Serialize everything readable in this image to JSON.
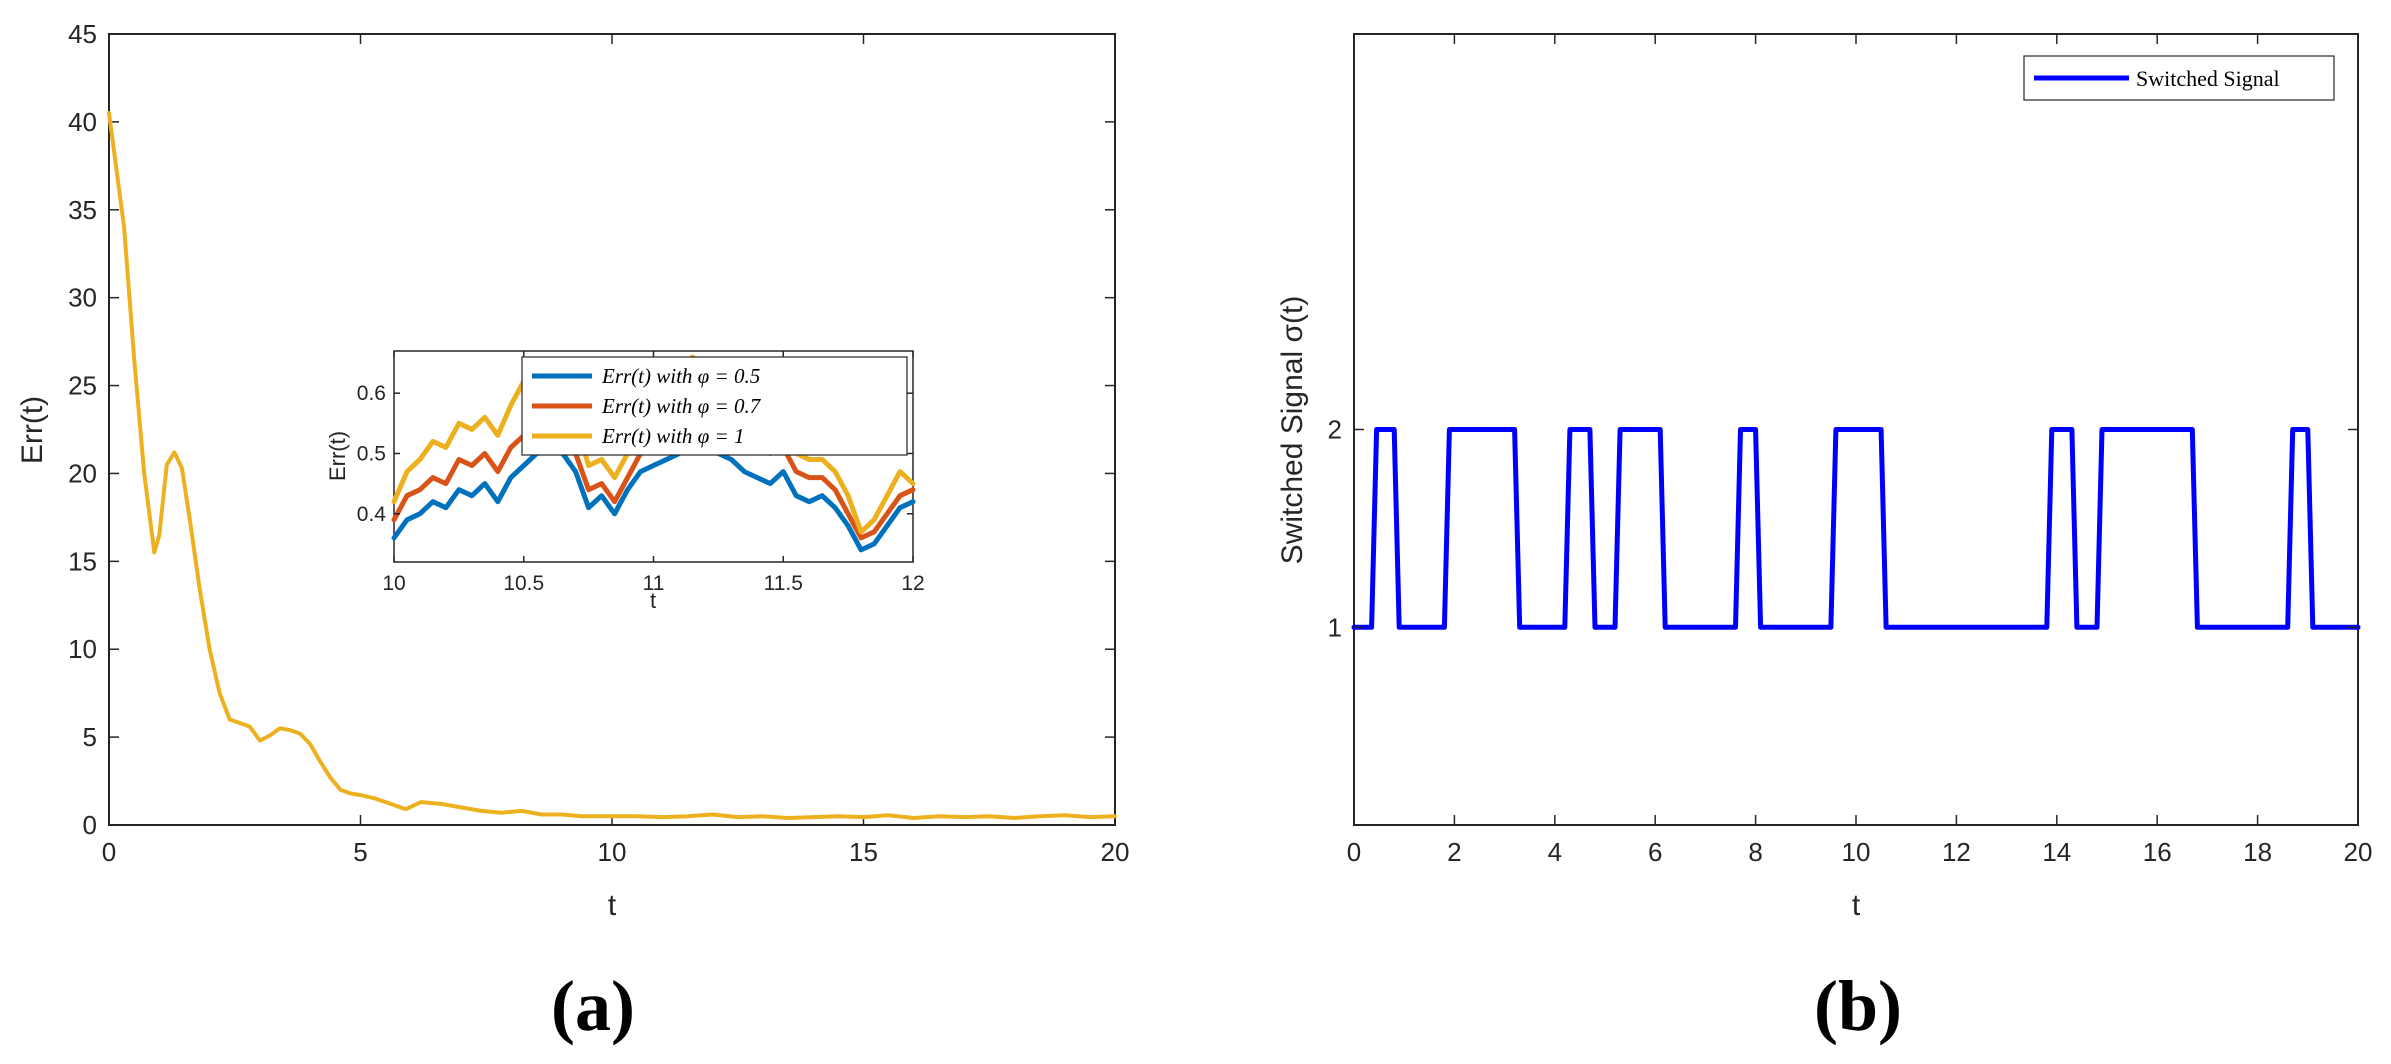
{
  "panel_labels": [
    "(a)",
    "(b)"
  ],
  "chart_data": [
    {
      "type": "line",
      "xlabel": "t",
      "ylabel": "Err(t)",
      "xlim": [
        0,
        20
      ],
      "ylim": [
        0,
        45
      ],
      "xticks": [
        0,
        5,
        10,
        15,
        20
      ],
      "yticks": [
        0,
        5,
        10,
        15,
        20,
        25,
        30,
        35,
        40,
        45
      ],
      "grid": false,
      "series": [
        {
          "name": "Err(t)   with   φ = 1",
          "color": "#EDB120",
          "x": [
            0,
            0.3,
            0.5,
            0.7,
            0.9,
            1.0,
            1.15,
            1.3,
            1.45,
            1.6,
            1.8,
            2.0,
            2.2,
            2.4,
            2.6,
            2.8,
            3.0,
            3.2,
            3.4,
            3.6,
            3.8,
            4.0,
            4.2,
            4.4,
            4.6,
            4.8,
            5.0,
            5.3,
            5.6,
            5.9,
            6.2,
            6.6,
            7.0,
            7.4,
            7.8,
            8.2,
            8.6,
            9.0,
            9.4,
            9.8,
            10.5,
            11.0,
            11.5,
            12.0,
            12.5,
            13.0,
            13.5,
            14.0,
            14.5,
            15.0,
            15.5,
            16.0,
            16.5,
            17.0,
            17.5,
            18.0,
            18.5,
            19.0,
            19.5,
            20.0
          ],
          "y": [
            40.5,
            34,
            26.5,
            20,
            15.5,
            16.5,
            20.5,
            21.2,
            20.3,
            17.5,
            13.5,
            10,
            7.5,
            6,
            5.8,
            5.6,
            4.8,
            5.1,
            5.5,
            5.4,
            5.2,
            4.6,
            3.6,
            2.7,
            2.0,
            1.8,
            1.7,
            1.5,
            1.2,
            0.9,
            1.3,
            1.2,
            1.0,
            0.8,
            0.7,
            0.8,
            0.6,
            0.6,
            0.5,
            0.5,
            0.5,
            0.45,
            0.5,
            0.6,
            0.45,
            0.5,
            0.4,
            0.45,
            0.5,
            0.45,
            0.55,
            0.4,
            0.5,
            0.45,
            0.5,
            0.4,
            0.5,
            0.55,
            0.45,
            0.5
          ]
        }
      ],
      "inset": {
        "xlabel": "t",
        "ylabel": "Err(t)",
        "xlim": [
          10,
          12
        ],
        "ylim": [
          0.32,
          0.67
        ],
        "xticks": [
          10,
          10.5,
          11,
          11.5,
          12
        ],
        "yticks": [
          0.4,
          0.5,
          0.6
        ],
        "legend_position": "top-right",
        "series": [
          {
            "name": "Err(t)   with   φ = 0.5",
            "color": "#0072BD",
            "x": [
              10.0,
              10.05,
              10.1,
              10.15,
              10.2,
              10.25,
              10.3,
              10.35,
              10.4,
              10.45,
              10.5,
              10.55,
              10.6,
              10.65,
              10.7,
              10.75,
              10.8,
              10.85,
              10.9,
              10.95,
              11.0,
              11.05,
              11.1,
              11.15,
              11.2,
              11.25,
              11.3,
              11.35,
              11.4,
              11.45,
              11.5,
              11.55,
              11.6,
              11.65,
              11.7,
              11.75,
              11.8,
              11.85,
              11.9,
              11.95,
              12.0
            ],
            "y": [
              0.36,
              0.39,
              0.4,
              0.42,
              0.41,
              0.44,
              0.43,
              0.45,
              0.42,
              0.46,
              0.48,
              0.5,
              0.52,
              0.5,
              0.47,
              0.41,
              0.43,
              0.4,
              0.44,
              0.47,
              0.48,
              0.49,
              0.5,
              0.52,
              0.51,
              0.5,
              0.49,
              0.47,
              0.46,
              0.45,
              0.47,
              0.43,
              0.42,
              0.43,
              0.41,
              0.38,
              0.34,
              0.35,
              0.38,
              0.41,
              0.42
            ]
          },
          {
            "name": "Err(t)   with   φ = 0.7",
            "color": "#D95319",
            "x": [
              10.0,
              10.05,
              10.1,
              10.15,
              10.2,
              10.25,
              10.3,
              10.35,
              10.4,
              10.45,
              10.5,
              10.55,
              10.6,
              10.65,
              10.7,
              10.75,
              10.8,
              10.85,
              10.9,
              10.95,
              11.0,
              11.05,
              11.1,
              11.15,
              11.2,
              11.25,
              11.3,
              11.35,
              11.4,
              11.45,
              11.5,
              11.55,
              11.6,
              11.65,
              11.7,
              11.75,
              11.8,
              11.85,
              11.9,
              11.95,
              12.0
            ],
            "y": [
              0.39,
              0.43,
              0.44,
              0.46,
              0.45,
              0.49,
              0.48,
              0.5,
              0.47,
              0.51,
              0.53,
              0.55,
              0.57,
              0.54,
              0.5,
              0.44,
              0.45,
              0.42,
              0.46,
              0.5,
              0.52,
              0.54,
              0.56,
              0.58,
              0.57,
              0.56,
              0.54,
              0.52,
              0.51,
              0.5,
              0.51,
              0.47,
              0.46,
              0.46,
              0.44,
              0.4,
              0.36,
              0.37,
              0.4,
              0.43,
              0.44
            ]
          },
          {
            "name": "Err(t)   with   φ = 1",
            "color": "#EDB120",
            "x": [
              10.0,
              10.05,
              10.1,
              10.15,
              10.2,
              10.25,
              10.3,
              10.35,
              10.4,
              10.45,
              10.5,
              10.55,
              10.6,
              10.65,
              10.7,
              10.75,
              10.8,
              10.85,
              10.9,
              10.95,
              11.0,
              11.05,
              11.1,
              11.15,
              11.2,
              11.25,
              11.3,
              11.35,
              11.4,
              11.45,
              11.5,
              11.55,
              11.6,
              11.65,
              11.7,
              11.75,
              11.8,
              11.85,
              11.9,
              11.95,
              12.0
            ],
            "y": [
              0.42,
              0.47,
              0.49,
              0.52,
              0.51,
              0.55,
              0.54,
              0.56,
              0.53,
              0.58,
              0.62,
              0.65,
              0.64,
              0.6,
              0.55,
              0.48,
              0.49,
              0.46,
              0.5,
              0.55,
              0.57,
              0.59,
              0.61,
              0.66,
              0.64,
              0.62,
              0.6,
              0.57,
              0.55,
              0.54,
              0.55,
              0.5,
              0.49,
              0.49,
              0.47,
              0.43,
              0.37,
              0.39,
              0.43,
              0.47,
              0.45
            ]
          }
        ]
      }
    },
    {
      "type": "line",
      "xlabel": "t",
      "ylabel": "Switched Signal σ(t)",
      "xlim": [
        0,
        20
      ],
      "ylim": [
        0,
        4
      ],
      "xticks": [
        0,
        2,
        4,
        6,
        8,
        10,
        12,
        14,
        16,
        18,
        20
      ],
      "yticks": [
        1,
        2
      ],
      "grid": false,
      "legend_position": "top-right",
      "series": [
        {
          "name": "Switched Signal",
          "color": "#0000FF",
          "x": [
            0,
            0.35,
            0.45,
            0.8,
            0.9,
            1.8,
            1.9,
            3.2,
            3.3,
            4.2,
            4.3,
            4.7,
            4.8,
            5.2,
            5.3,
            6.1,
            6.2,
            7.6,
            7.7,
            8.0,
            8.1,
            9.5,
            9.6,
            10.5,
            10.6,
            13.8,
            13.9,
            14.3,
            14.4,
            14.8,
            14.9,
            16.7,
            16.8,
            18.6,
            18.7,
            19.0,
            19.1,
            20.0
          ],
          "y": [
            1,
            1,
            2,
            2,
            1,
            1,
            2,
            2,
            1,
            1,
            2,
            2,
            1,
            1,
            2,
            2,
            1,
            1,
            2,
            2,
            1,
            1,
            2,
            2,
            1,
            1,
            2,
            2,
            1,
            1,
            2,
            2,
            1,
            1,
            2,
            2,
            1,
            1
          ]
        }
      ]
    }
  ]
}
